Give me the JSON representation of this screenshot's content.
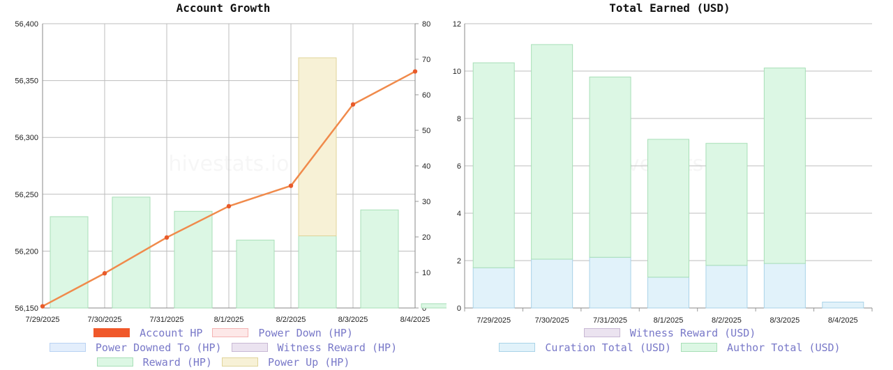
{
  "chart_data": [
    {
      "type": "bar",
      "title": "Account Growth",
      "categories": [
        "7/29/2025",
        "7/30/2025",
        "7/31/2025",
        "8/1/2025",
        "8/2/2025",
        "8/3/2025",
        "8/4/2025"
      ],
      "y_left": {
        "ylim": [
          56150,
          56400
        ],
        "ticks": [
          "56,400",
          "56,350",
          "56,300",
          "56,250",
          "56,200",
          "56,150"
        ]
      },
      "y_right": {
        "ylim": [
          0,
          80
        ],
        "ticks": [
          "80",
          "70",
          "60",
          "50",
          "40",
          "30",
          "20",
          "10",
          "0"
        ]
      },
      "grid": true,
      "legend_position": "bottom",
      "watermark": "hivestats.io",
      "series": [
        {
          "name": "Account HP",
          "kind": "line",
          "axis": "left",
          "color": "#f08a4b",
          "swatch_fill": "#f0582a",
          "swatch_border": "#f0582a",
          "values": [
            56151.5,
            56180.5,
            56212,
            56239.5,
            56257.5,
            56329,
            56358
          ]
        },
        {
          "name": "Power Down (HP)",
          "kind": "bar",
          "axis": "right",
          "swatch_fill": "#fde8e8",
          "swatch_border": "#f4b3b3",
          "values": [
            0,
            0,
            0,
            0,
            0,
            0,
            0
          ]
        },
        {
          "name": "Power Downed To (HP)",
          "kind": "bar",
          "axis": "right",
          "swatch_fill": "#e3eefc",
          "swatch_border": "#b9d2f3",
          "values": [
            0,
            0,
            0,
            0,
            0,
            0,
            0
          ]
        },
        {
          "name": "Witness Reward (HP)",
          "kind": "bar",
          "axis": "right",
          "swatch_fill": "#ebe3f0",
          "swatch_border": "#c8b8d4",
          "values": [
            0,
            0,
            0,
            0,
            0,
            0,
            0
          ]
        },
        {
          "name": "Reward (HP)",
          "kind": "bar",
          "axis": "right",
          "color": "#dcf7e4",
          "border": "#a7dfb7",
          "swatch_fill": "#dcf7e4",
          "swatch_border": "#a7dfb7",
          "values": [
            25.7,
            31.2,
            27.2,
            19.1,
            20.3,
            27.6,
            1.2
          ]
        },
        {
          "name": "Power Up (HP)",
          "kind": "bar",
          "axis": "right",
          "color": "#f7f1d6",
          "border": "#e0d49a",
          "swatch_fill": "#f7f1d6",
          "swatch_border": "#e0d49a",
          "base": [
            0,
            0,
            0,
            0,
            20.3,
            0,
            0
          ],
          "values": [
            0,
            0,
            0,
            0,
            50.1,
            0,
            0
          ]
        }
      ]
    },
    {
      "type": "bar",
      "title": "Total Earned (USD)",
      "categories": [
        "7/29/2025",
        "7/30/2025",
        "7/31/2025",
        "8/1/2025",
        "8/2/2025",
        "8/3/2025",
        "8/4/2025"
      ],
      "y": {
        "ylim": [
          0,
          12
        ],
        "ticks": [
          "12",
          "10",
          "8",
          "6",
          "4",
          "2",
          "0"
        ]
      },
      "stacked": true,
      "grid": true,
      "legend_position": "bottom",
      "watermark": "hivestats.io",
      "series": [
        {
          "name": "Witness Reward (USD)",
          "swatch_fill": "#ebe3f0",
          "swatch_border": "#c8b8d4",
          "values": [
            0,
            0,
            0,
            0,
            0,
            0,
            0
          ]
        },
        {
          "name": "Curation Total (USD)",
          "color": "#e1f2fa",
          "border": "#a9d3e8",
          "swatch_fill": "#e1f2fa",
          "swatch_border": "#a9d3e8",
          "values": [
            1.7,
            2.06,
            2.14,
            1.3,
            1.8,
            1.88,
            0.25
          ]
        },
        {
          "name": "Author Total (USD)",
          "color": "#dcf7e4",
          "border": "#a7dfb7",
          "swatch_fill": "#dcf7e4",
          "swatch_border": "#a7dfb7",
          "values": [
            8.65,
            9.06,
            7.61,
            5.82,
            5.15,
            8.25,
            0
          ]
        }
      ]
    }
  ]
}
